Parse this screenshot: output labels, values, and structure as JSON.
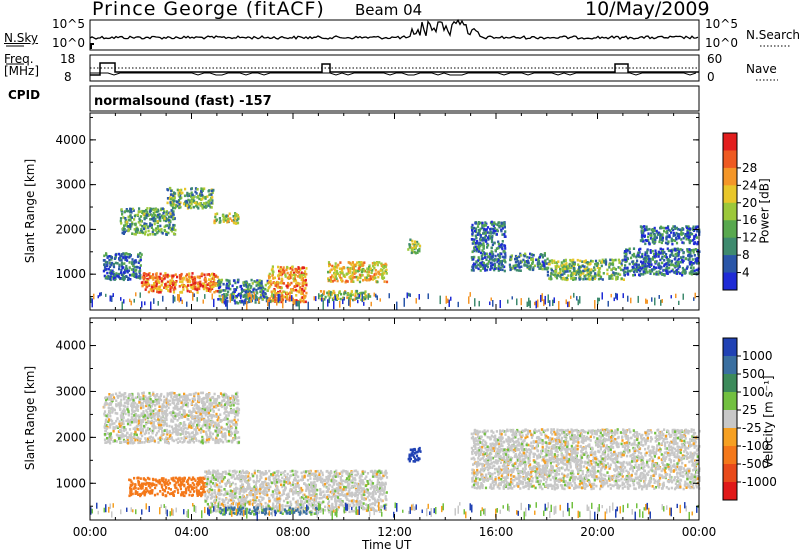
{
  "header": {
    "station": "Prince George (fitACF)",
    "beam": "Beam 04",
    "date": "10/May/2009"
  },
  "panels": {
    "nsky": {
      "label": "N.Sky",
      "ticks": [
        "10^5",
        "10^0"
      ]
    },
    "nsearch": {
      "label": "N.Search"
    },
    "freq": {
      "label": "Freq.",
      "unit": "[MHz]",
      "ticks": [
        "18",
        "8"
      ]
    },
    "nave": {
      "label": "Nave",
      "ticks": [
        "60",
        "0"
      ]
    },
    "cpid": {
      "label": "CPID",
      "mode": "normalsound (fast) -157"
    }
  },
  "chart_data": [
    {
      "type": "heatmap",
      "title": "",
      "xlabel": "",
      "ylabel": "Slant Range [km]",
      "xlim": [
        "00:00",
        "00:00"
      ],
      "ylim": [
        200,
        4600
      ],
      "y_ticks": [
        "1000",
        "2000",
        "3000",
        "4000"
      ],
      "colorbar": {
        "label": "Power [dB]",
        "ticks": [
          "4",
          "8",
          "12",
          "16",
          "20",
          "24",
          "28"
        ],
        "colors": [
          "#1f2bd6",
          "#2a56a8",
          "#3e8a6e",
          "#58a84e",
          "#9cc83a",
          "#e8c62a",
          "#f49628",
          "#ee5a22",
          "#e21e1e"
        ]
      },
      "regions": [
        {
          "start": "01:10",
          "end": "03:20",
          "range": [
            1900,
            2500
          ],
          "value": 12
        },
        {
          "start": "03:00",
          "end": "04:50",
          "range": [
            2500,
            2950
          ],
          "value": 14
        },
        {
          "start": "04:50",
          "end": "05:50",
          "range": [
            2150,
            2400
          ],
          "value": 16
        },
        {
          "start": "00:30",
          "end": "02:00",
          "range": [
            900,
            1500
          ],
          "value": 8
        },
        {
          "start": "02:00",
          "end": "05:00",
          "range": [
            620,
            1050
          ],
          "value": 26
        },
        {
          "start": "05:00",
          "end": "07:00",
          "range": [
            380,
            900
          ],
          "value": 10
        },
        {
          "start": "07:00",
          "end": "08:30",
          "range": [
            400,
            1200
          ],
          "value": 24
        },
        {
          "start": "09:20",
          "end": "11:40",
          "range": [
            850,
            1300
          ],
          "value": 20
        },
        {
          "start": "09:00",
          "end": "11:00",
          "range": [
            450,
            650
          ],
          "value": 18
        },
        {
          "start": "12:30",
          "end": "13:00",
          "range": [
            1500,
            1800
          ],
          "value": 16
        },
        {
          "start": "15:00",
          "end": "16:20",
          "range": [
            1100,
            2200
          ],
          "value": 8
        },
        {
          "start": "16:30",
          "end": "18:00",
          "range": [
            1100,
            1500
          ],
          "value": 10
        },
        {
          "start": "18:00",
          "end": "21:00",
          "range": [
            900,
            1350
          ],
          "value": 14
        },
        {
          "start": "21:00",
          "end": "23:59",
          "range": [
            1000,
            1600
          ],
          "value": 8
        },
        {
          "start": "21:40",
          "end": "23:59",
          "range": [
            1700,
            2100
          ],
          "value": 7
        }
      ]
    },
    {
      "type": "heatmap",
      "title": "",
      "xlabel": "Time UT",
      "ylabel": "Slant Range [km]",
      "xlim": [
        "00:00",
        "00:00"
      ],
      "ylim": [
        200,
        4600
      ],
      "x_ticks": [
        "00:00",
        "04:00",
        "08:00",
        "12:00",
        "16:00",
        "20:00",
        "00:00"
      ],
      "y_ticks": [
        "1000",
        "2000",
        "3000",
        "4000"
      ],
      "colorbar": {
        "label": "Velocity [m s⁻¹]",
        "ticks": [
          "1000",
          "500",
          "100",
          "25",
          "-25",
          "-100",
          "-500",
          "-1000"
        ],
        "colors": [
          "#2142b4",
          "#3a6fa0",
          "#3c8a5a",
          "#72c040",
          "#c8c8c8",
          "#f6a022",
          "#f4781a",
          "#e84a1a",
          "#e01818"
        ]
      },
      "regions": [
        {
          "start": "00:30",
          "end": "05:50",
          "range": [
            1900,
            3000
          ],
          "value": 0
        },
        {
          "start": "01:30",
          "end": "04:30",
          "range": [
            750,
            1150
          ],
          "value": -200
        },
        {
          "start": "04:30",
          "end": "11:40",
          "range": [
            400,
            1300
          ],
          "value": 0
        },
        {
          "start": "05:00",
          "end": "09:00",
          "range": [
            350,
            500
          ],
          "value": 120
        },
        {
          "start": "12:30",
          "end": "13:00",
          "range": [
            1500,
            1800
          ],
          "value": 700
        },
        {
          "start": "15:00",
          "end": "23:59",
          "range": [
            900,
            2200
          ],
          "value": 0
        }
      ]
    }
  ],
  "xaxis": {
    "label": "Time UT",
    "ticks": [
      "00:00",
      "04:00",
      "08:00",
      "12:00",
      "16:00",
      "20:00",
      "00:00"
    ]
  },
  "colors": {
    "background": "#ffffff",
    "axis": "#000000"
  }
}
